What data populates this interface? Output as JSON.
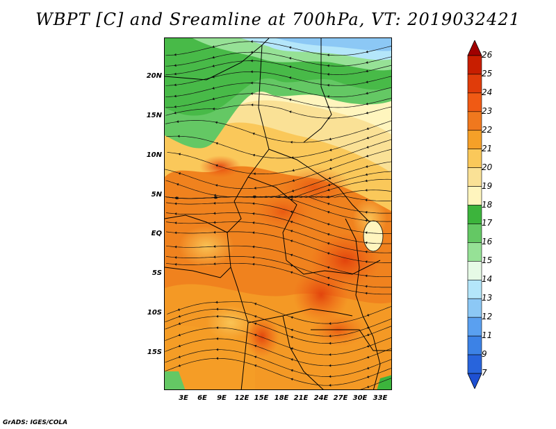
{
  "title": "WBPT [C] and Sreamline at 700hPa, VT: 2019032421",
  "credit": "GrADS: IGES/COLA",
  "lat_labels": [
    "20N",
    "15N",
    "10N",
    "5N",
    "EQ",
    "5S",
    "10S",
    "15S"
  ],
  "lon_labels": [
    "3E",
    "6E",
    "9E",
    "12E",
    "15E",
    "18E",
    "21E",
    "24E",
    "27E",
    "30E",
    "33E"
  ],
  "colorbar": {
    "labels": [
      "26",
      "25",
      "24",
      "23",
      "22",
      "21",
      "20",
      "19",
      "18",
      "17",
      "16",
      "15",
      "14",
      "13",
      "12",
      "11",
      "9",
      "7"
    ],
    "colors": [
      "#a00000",
      "#c81e00",
      "#e03c0a",
      "#f05a14",
      "#f0781e",
      "#f5a028",
      "#fac85a",
      "#fae196",
      "#fff5be",
      "#3cb43c",
      "#64c864",
      "#96e196",
      "#e6fae6",
      "#b4e6fa",
      "#8cc8f5",
      "#5aa0f0",
      "#3c82e6",
      "#2864dc",
      "#1e50d2"
    ]
  }
}
